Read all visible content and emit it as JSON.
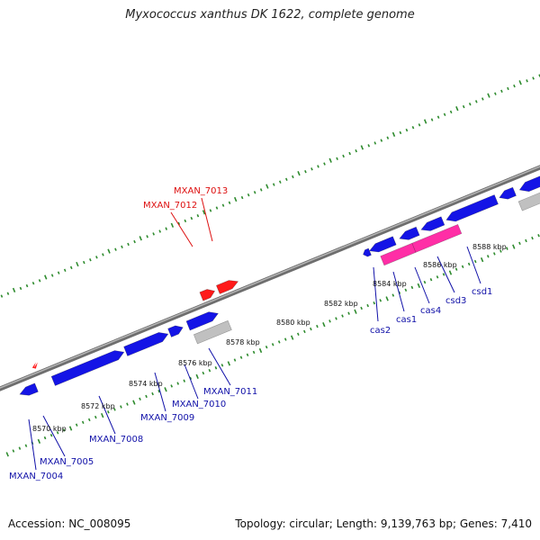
{
  "title": "Myxococcus xanthus DK 1622, complete genome",
  "accession": "Accession: NC_008095",
  "summary": "Topology: circular; Length: 9,139,763 bp; Genes: 7,410",
  "colors": {
    "backbone": "#8c8c8c",
    "tick_marks": "#2e8b2e",
    "gene_cds": "#1414e6",
    "gene_cas": "#ff2ea6",
    "gene_rna": "#ff1a1a",
    "gene_other": "#c0c0c0",
    "label_blue": "#1010a8",
    "label_red": "#dd1010"
  },
  "tick_labels": [
    "8570 kbp",
    "8572 kbp",
    "8574 kbp",
    "8576 kbp",
    "8578 kbp",
    "8580 kbp",
    "8582 kbp",
    "8584 kbp",
    "8586 kbp",
    "8588 kbp"
  ],
  "gene_labels": [
    {
      "name": "MXAN_7004",
      "color": "blue"
    },
    {
      "name": "MXAN_7005",
      "color": "blue"
    },
    {
      "name": "MXAN_7008",
      "color": "blue"
    },
    {
      "name": "MXAN_7009",
      "color": "blue"
    },
    {
      "name": "MXAN_7010",
      "color": "blue"
    },
    {
      "name": "MXAN_7011",
      "color": "blue"
    },
    {
      "name": "MXAN_7012",
      "color": "red"
    },
    {
      "name": "MXAN_7013",
      "color": "red"
    },
    {
      "name": "cas2",
      "color": "blue"
    },
    {
      "name": "cas1",
      "color": "blue"
    },
    {
      "name": "cas4",
      "color": "blue"
    },
    {
      "name": "csd3",
      "color": "blue"
    },
    {
      "name": "csd1",
      "color": "blue"
    }
  ]
}
